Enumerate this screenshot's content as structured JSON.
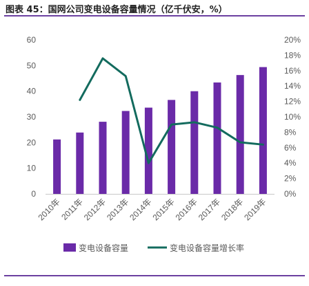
{
  "figure": {
    "title": "图表 45：国网公司变电设备容量情况（亿千伏安，%）"
  },
  "colors": {
    "bar": "#6a2aa8",
    "line": "#136b5e",
    "axis_text": "#595959",
    "axis_line": "#c8c8c8",
    "accent_rule": "#6b3fa0"
  },
  "chart_data": {
    "type": "bar",
    "categories": [
      "2010年",
      "2011年",
      "2012年",
      "2013年",
      "2014年",
      "2015年",
      "2016年",
      "2017年",
      "2018年",
      "2019年"
    ],
    "series": [
      {
        "name": "变电设备容量",
        "type": "bar",
        "axis": "left",
        "color": "#6a2aa8",
        "values": [
          21.2,
          23.9,
          28.1,
          32.3,
          33.6,
          36.6,
          40.0,
          43.4,
          46.3,
          49.4
        ]
      },
      {
        "name": "变电设备容量增长率",
        "type": "line",
        "axis": "right",
        "color": "#136b5e",
        "values": [
          null,
          12.2,
          17.6,
          15.3,
          4.0,
          9.0,
          9.3,
          8.6,
          6.7,
          6.4
        ]
      }
    ],
    "y_left": {
      "min": 0,
      "max": 60,
      "ticks": [
        0,
        10,
        20,
        30,
        40,
        50,
        60
      ],
      "tick_labels": [
        "0",
        "10",
        "20",
        "30",
        "40",
        "50",
        "60"
      ]
    },
    "y_right": {
      "min": 0,
      "max": 20,
      "ticks": [
        0,
        2,
        4,
        6,
        8,
        10,
        12,
        14,
        16,
        18,
        20
      ],
      "tick_labels": [
        "0%",
        "2%",
        "4%",
        "6%",
        "8%",
        "10%",
        "12%",
        "14%",
        "16%",
        "18%",
        "20%"
      ]
    },
    "grid": false,
    "legend_position": "bottom"
  }
}
